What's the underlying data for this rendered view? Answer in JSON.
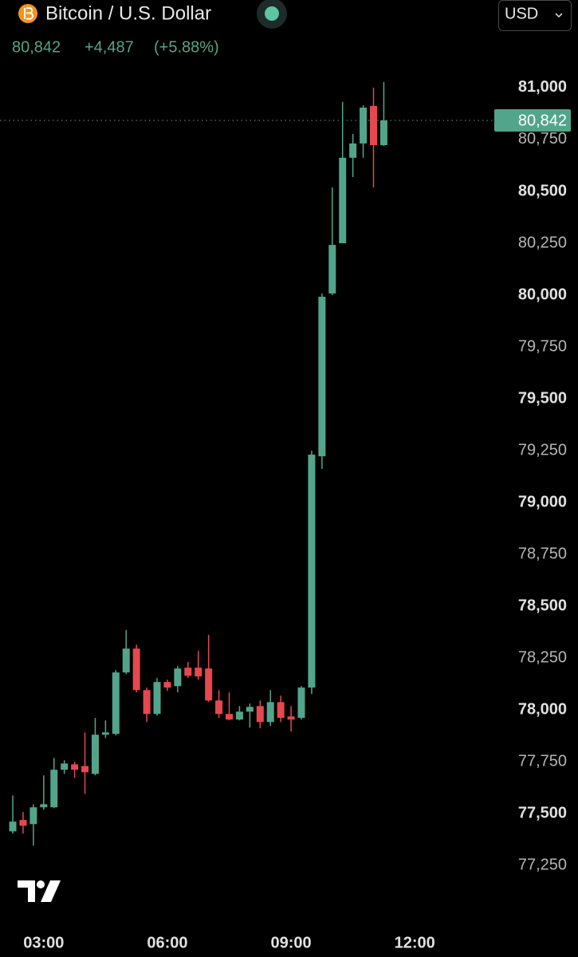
{
  "header": {
    "title": "Bitcoin / U.S. Dollar",
    "price": "80,842",
    "change": "+4,487",
    "change_pct": "(+5.88%)",
    "currency": "USD"
  },
  "chart_data": {
    "type": "candlestick",
    "up_color": "#52a58b",
    "down_color": "#e5484d",
    "x": [
      2.25,
      2.5,
      2.75,
      3,
      3.25,
      3.5,
      3.75,
      4,
      4.25,
      4.5,
      4.75,
      5,
      5.25,
      5.5,
      5.75,
      6,
      6.25,
      6.5,
      6.75,
      7,
      7.25,
      7.5,
      7.75,
      8,
      8.25,
      8.5,
      8.75,
      9,
      9.25,
      9.5,
      9.75,
      10,
      10.25,
      10.5,
      10.75,
      11,
      11.25
    ],
    "open": [
      77415,
      77470,
      77450,
      77531,
      77531,
      77712,
      77738,
      77730,
      77692,
      77881,
      77885,
      78181,
      78296,
      78096,
      77981,
      78135,
      78115,
      78204,
      78204,
      78200,
      78046,
      77981,
      77954,
      77992,
      78019,
      77942,
      78038,
      77969,
      77962,
      78108,
      79223,
      80008,
      80250,
      80662,
      80731,
      80912,
      80723
    ],
    "high": [
      77588,
      77508,
      77546,
      77685,
      77769,
      77758,
      77750,
      77892,
      77962,
      77950,
      78192,
      78385,
      78315,
      78108,
      78154,
      78146,
      78212,
      78231,
      78285,
      78362,
      78096,
      78085,
      78019,
      78031,
      78046,
      78096,
      78069,
      78019,
      78115,
      79250,
      80008,
      80519,
      80931,
      80777,
      80915,
      81000,
      81027
    ],
    "low": [
      77404,
      77404,
      77346,
      77519,
      77527,
      77692,
      77673,
      77596,
      77685,
      77865,
      77877,
      78173,
      78085,
      77942,
      77973,
      78092,
      78085,
      78154,
      78146,
      78038,
      77962,
      77950,
      77950,
      77915,
      77912,
      77923,
      77942,
      77896,
      77954,
      78077,
      79162,
      80000,
      80250,
      80569,
      80662,
      80519,
      80719
    ],
    "close": [
      77462,
      77442,
      77531,
      77546,
      77712,
      77742,
      77712,
      77700,
      77881,
      77892,
      78181,
      78296,
      78096,
      77981,
      78135,
      78108,
      78200,
      78165,
      78162,
      78046,
      77981,
      77954,
      77992,
      78015,
      77942,
      78038,
      77962,
      77954,
      78108,
      79231,
      79992,
      80242,
      80662,
      80731,
      80904,
      80723,
      80842
    ],
    "xlim": [
      1.94,
      13.93
    ],
    "xticks": [
      {
        "value": 3,
        "label": "03:00"
      },
      {
        "value": 6,
        "label": "06:00"
      },
      {
        "value": 9,
        "label": "09:00"
      },
      {
        "value": 12,
        "label": "12:00"
      }
    ],
    "ylim": [
      77040,
      81115
    ],
    "yticks": [
      {
        "value": 77250,
        "label": "77,250"
      },
      {
        "value": 77500,
        "label": "77,500"
      },
      {
        "value": 77750,
        "label": "77,750"
      },
      {
        "value": 78000,
        "label": "78,000"
      },
      {
        "value": 78250,
        "label": "78,250"
      },
      {
        "value": 78500,
        "label": "78,500"
      },
      {
        "value": 78750,
        "label": "78,750"
      },
      {
        "value": 79000,
        "label": "79,000"
      },
      {
        "value": 79250,
        "label": "79,250"
      },
      {
        "value": 79500,
        "label": "79,500"
      },
      {
        "value": 79750,
        "label": "79,750"
      },
      {
        "value": 80000,
        "label": "80,000"
      },
      {
        "value": 80250,
        "label": "80,250"
      },
      {
        "value": 80500,
        "label": "80,500"
      },
      {
        "value": 80750,
        "label": "80,750"
      },
      {
        "value": 81000,
        "label": "81,000"
      }
    ],
    "last_price": {
      "value": 80842,
      "label": "80,842"
    }
  }
}
